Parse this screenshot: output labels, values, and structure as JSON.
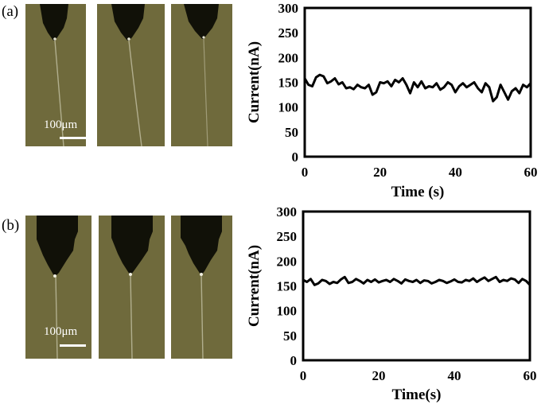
{
  "figure": {
    "panel_a_label": "(a)",
    "panel_b_label": "(b)",
    "scale_bar_label": "100μm"
  },
  "photos": {
    "background": "#6f6a3c",
    "nozzle_color": "#111108",
    "rows": [
      {
        "row": "a",
        "images": [
          {
            "name": "a1",
            "filament": "straight"
          },
          {
            "name": "a2",
            "filament": "bent"
          },
          {
            "name": "a3",
            "filament": "straight-faint"
          }
        ]
      },
      {
        "row": "b",
        "images": [
          {
            "name": "b1",
            "filament": "straight"
          },
          {
            "name": "b2",
            "filament": "straight"
          },
          {
            "name": "b3",
            "filament": "straight"
          }
        ]
      }
    ]
  },
  "chart_data": [
    {
      "type": "line",
      "xlabel": "Time (s)",
      "ylabel": "Current(nA)",
      "xlim": [
        0,
        60
      ],
      "ylim": [
        0,
        300
      ],
      "xticks": [
        0,
        20,
        40,
        60
      ],
      "yticks": [
        0,
        50,
        100,
        150,
        200,
        250,
        300
      ],
      "grid": false,
      "series": [
        {
          "x": [
            0,
            1,
            2,
            3,
            4,
            5,
            6,
            7,
            8,
            9,
            10,
            11,
            12,
            13,
            14,
            15,
            16,
            17,
            18,
            19,
            20,
            21,
            22,
            23,
            24,
            25,
            26,
            27,
            28,
            29,
            30,
            31,
            32,
            33,
            34,
            35,
            36,
            37,
            38,
            39,
            40,
            41,
            42,
            43,
            44,
            45,
            46,
            47,
            48,
            49,
            50,
            51,
            52,
            53,
            54,
            55,
            56,
            57,
            58,
            59,
            60
          ],
          "y": [
            158,
            145,
            142,
            160,
            165,
            162,
            148,
            152,
            158,
            146,
            150,
            138,
            140,
            136,
            145,
            140,
            138,
            145,
            125,
            130,
            150,
            148,
            152,
            142,
            155,
            150,
            158,
            145,
            128,
            150,
            140,
            152,
            138,
            142,
            140,
            148,
            135,
            140,
            150,
            145,
            130,
            142,
            148,
            140,
            145,
            150,
            138,
            130,
            148,
            140,
            112,
            120,
            145,
            130,
            115,
            132,
            138,
            128,
            145,
            140,
            148
          ]
        }
      ]
    },
    {
      "type": "line",
      "xlabel": "Time(s)",
      "ylabel": "Current(nA)",
      "xlim": [
        0,
        60
      ],
      "ylim": [
        0,
        300
      ],
      "xticks": [
        0,
        20,
        40,
        60
      ],
      "yticks": [
        0,
        50,
        100,
        150,
        200,
        250,
        300
      ],
      "grid": false,
      "series": [
        {
          "x": [
            0,
            1,
            2,
            3,
            4,
            5,
            6,
            7,
            8,
            9,
            10,
            11,
            12,
            13,
            14,
            15,
            16,
            17,
            18,
            19,
            20,
            21,
            22,
            23,
            24,
            25,
            26,
            27,
            28,
            29,
            30,
            31,
            32,
            33,
            34,
            35,
            36,
            37,
            38,
            39,
            40,
            41,
            42,
            43,
            44,
            45,
            46,
            47,
            48,
            49,
            50,
            51,
            52,
            53,
            54,
            55,
            56,
            57,
            58,
            59,
            60
          ],
          "y": [
            162,
            158,
            164,
            152,
            155,
            162,
            160,
            154,
            158,
            156,
            163,
            168,
            156,
            158,
            164,
            160,
            155,
            162,
            158,
            163,
            157,
            160,
            162,
            158,
            164,
            160,
            155,
            163,
            160,
            158,
            162,
            156,
            161,
            160,
            155,
            158,
            162,
            160,
            156,
            159,
            163,
            158,
            157,
            162,
            160,
            165,
            158,
            163,
            167,
            160,
            164,
            168,
            158,
            162,
            160,
            165,
            163,
            156,
            164,
            160,
            152
          ]
        }
      ]
    }
  ]
}
